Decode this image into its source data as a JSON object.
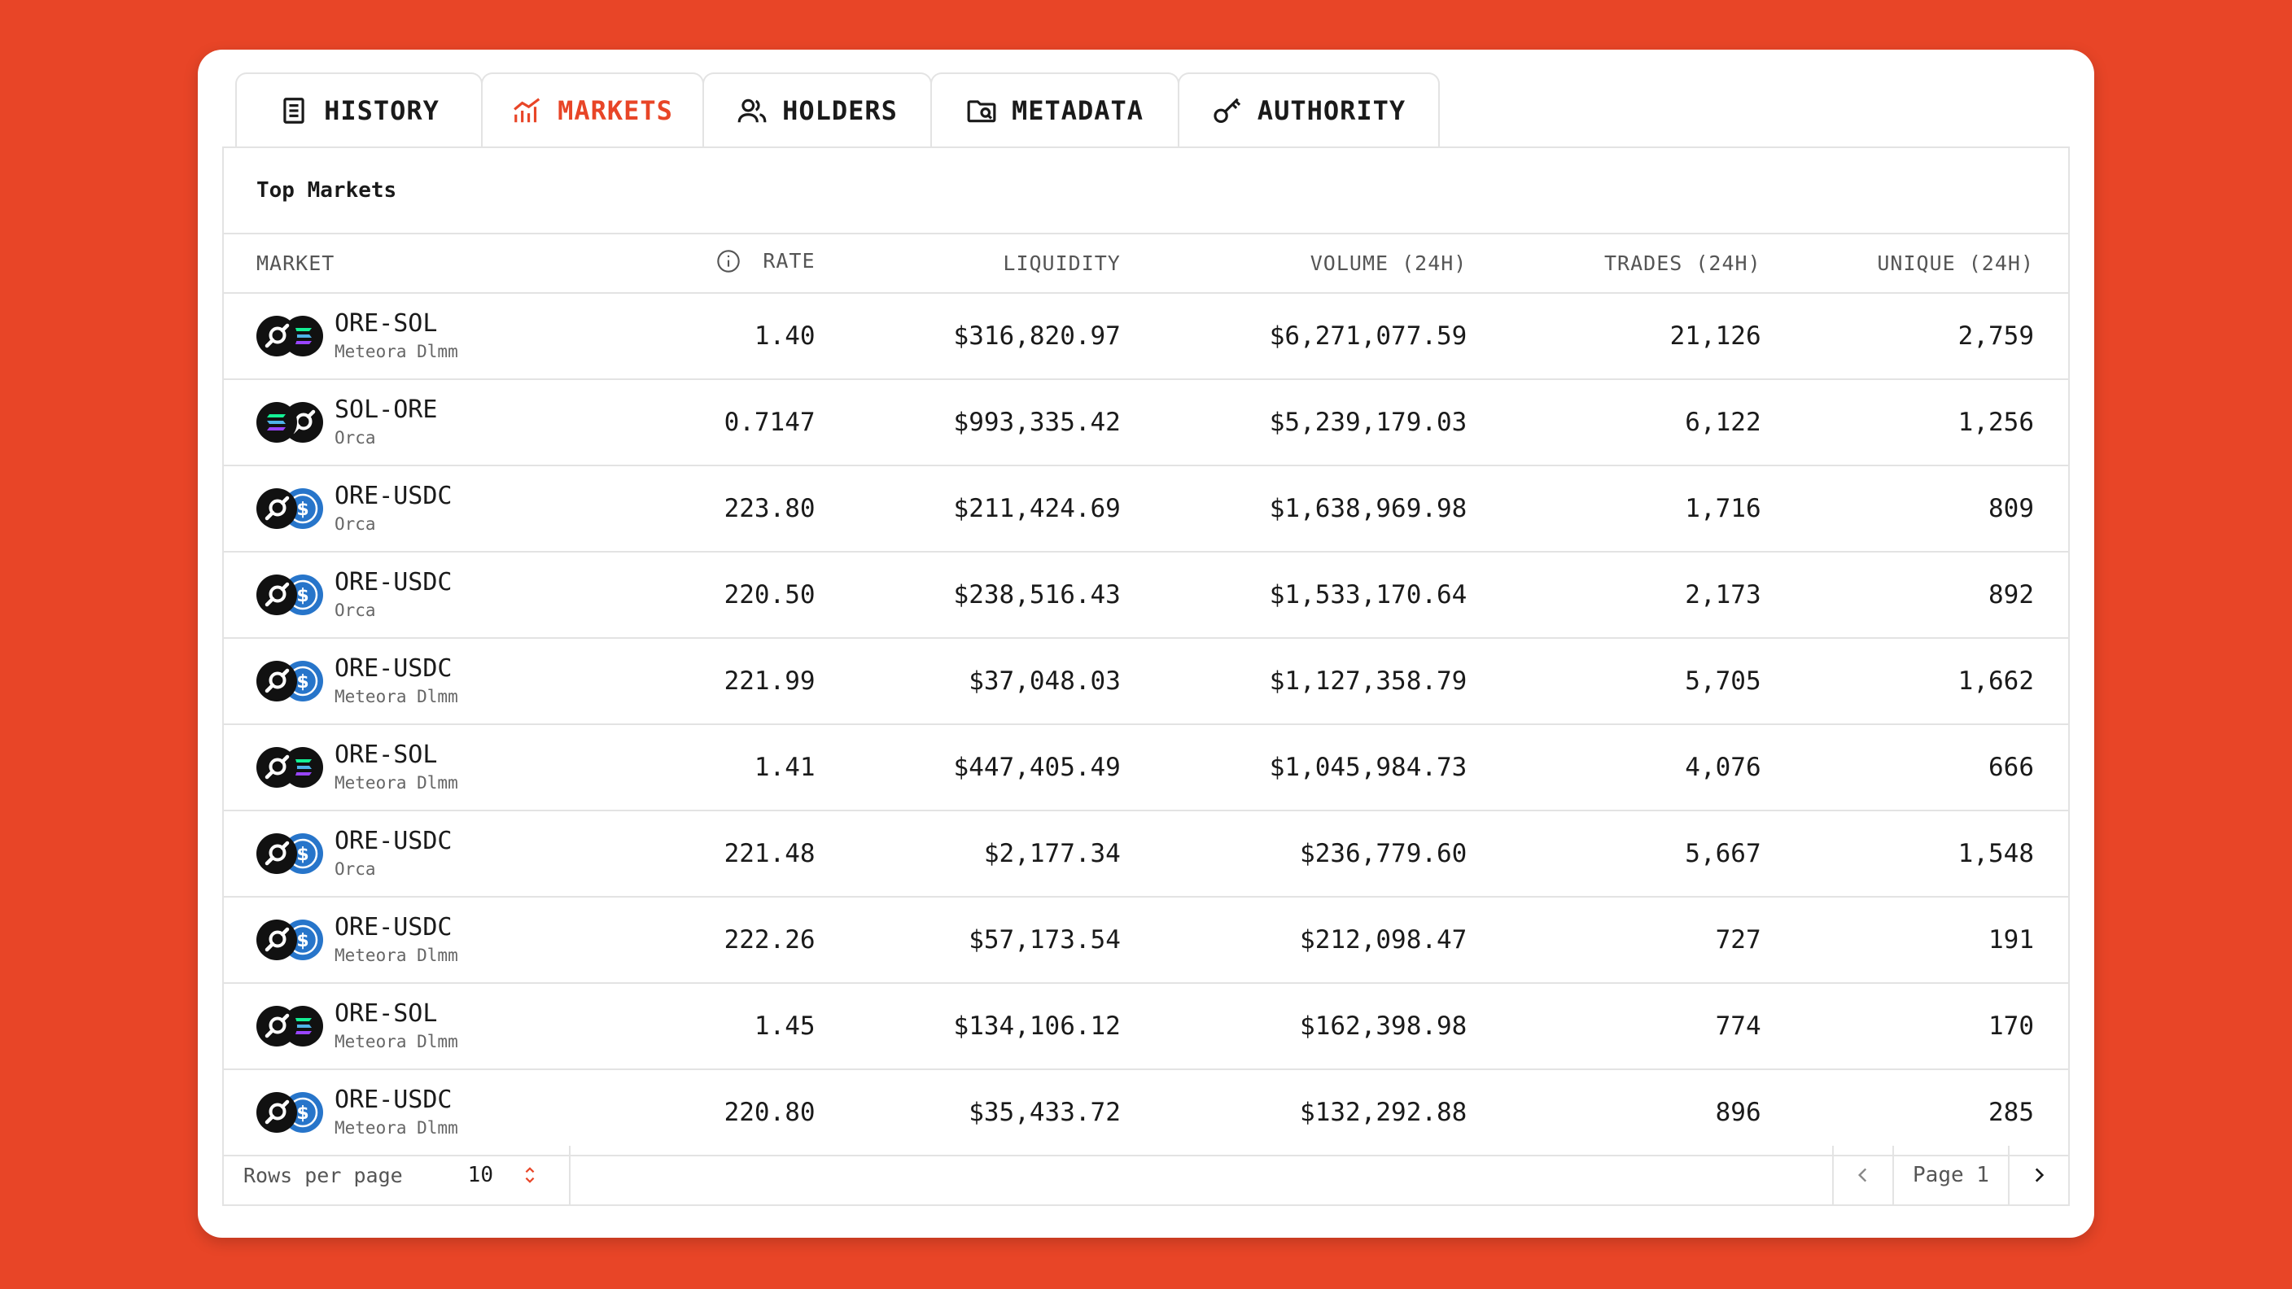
{
  "tabs": [
    {
      "label": "HISTORY",
      "icon": "document-icon",
      "active": false
    },
    {
      "label": "MARKETS",
      "icon": "chart-icon",
      "active": true
    },
    {
      "label": "HOLDERS",
      "icon": "users-icon",
      "active": false
    },
    {
      "label": "METADATA",
      "icon": "folder-search-icon",
      "active": false
    },
    {
      "label": "AUTHORITY",
      "icon": "key-icon",
      "active": false
    }
  ],
  "colors": {
    "accent": "#E84527",
    "ore": "#111111",
    "usdc": "#2775CA"
  },
  "panel": {
    "title": "Top Markets"
  },
  "table": {
    "headers": {
      "market": "MARKET",
      "rate": "RATE",
      "liquidity": "LIQUIDITY",
      "volume": "VOLUME (24H)",
      "trades": "TRADES (24H)",
      "unique": "UNIQUE (24H)"
    },
    "rows": [
      {
        "icons": [
          "ore-icon",
          "sol-icon"
        ],
        "pair": "ORE-SOL",
        "dex": "Meteora Dlmm",
        "rate": "1.40",
        "liquidity": "$316,820.97",
        "volume": "$6,271,077.59",
        "trades": "21,126",
        "unique": "2,759"
      },
      {
        "icons": [
          "sol-icon",
          "ore-icon"
        ],
        "pair": "SOL-ORE",
        "dex": "Orca",
        "rate": "0.7147",
        "liquidity": "$993,335.42",
        "volume": "$5,239,179.03",
        "trades": "6,122",
        "unique": "1,256"
      },
      {
        "icons": [
          "ore-icon",
          "usdc-icon"
        ],
        "pair": "ORE-USDC",
        "dex": "Orca",
        "rate": "223.80",
        "liquidity": "$211,424.69",
        "volume": "$1,638,969.98",
        "trades": "1,716",
        "unique": "809"
      },
      {
        "icons": [
          "ore-icon",
          "usdc-icon"
        ],
        "pair": "ORE-USDC",
        "dex": "Orca",
        "rate": "220.50",
        "liquidity": "$238,516.43",
        "volume": "$1,533,170.64",
        "trades": "2,173",
        "unique": "892"
      },
      {
        "icons": [
          "ore-icon",
          "usdc-icon"
        ],
        "pair": "ORE-USDC",
        "dex": "Meteora Dlmm",
        "rate": "221.99",
        "liquidity": "$37,048.03",
        "volume": "$1,127,358.79",
        "trades": "5,705",
        "unique": "1,662"
      },
      {
        "icons": [
          "ore-icon",
          "sol-icon"
        ],
        "pair": "ORE-SOL",
        "dex": "Meteora Dlmm",
        "rate": "1.41",
        "liquidity": "$447,405.49",
        "volume": "$1,045,984.73",
        "trades": "4,076",
        "unique": "666"
      },
      {
        "icons": [
          "ore-icon",
          "usdc-icon"
        ],
        "pair": "ORE-USDC",
        "dex": "Orca",
        "rate": "221.48",
        "liquidity": "$2,177.34",
        "volume": "$236,779.60",
        "trades": "5,667",
        "unique": "1,548"
      },
      {
        "icons": [
          "ore-icon",
          "usdc-icon"
        ],
        "pair": "ORE-USDC",
        "dex": "Meteora Dlmm",
        "rate": "222.26",
        "liquidity": "$57,173.54",
        "volume": "$212,098.47",
        "trades": "727",
        "unique": "191"
      },
      {
        "icons": [
          "ore-icon",
          "sol-icon"
        ],
        "pair": "ORE-SOL",
        "dex": "Meteora Dlmm",
        "rate": "1.45",
        "liquidity": "$134,106.12",
        "volume": "$162,398.98",
        "trades": "774",
        "unique": "170"
      },
      {
        "icons": [
          "ore-icon",
          "usdc-icon"
        ],
        "pair": "ORE-USDC",
        "dex": "Meteora Dlmm",
        "rate": "220.80",
        "liquidity": "$35,433.72",
        "volume": "$132,292.88",
        "trades": "896",
        "unique": "285"
      }
    ]
  },
  "footer": {
    "rows_per_page_label": "Rows per page",
    "rows_per_page_value": "10",
    "page_label": "Page 1"
  }
}
